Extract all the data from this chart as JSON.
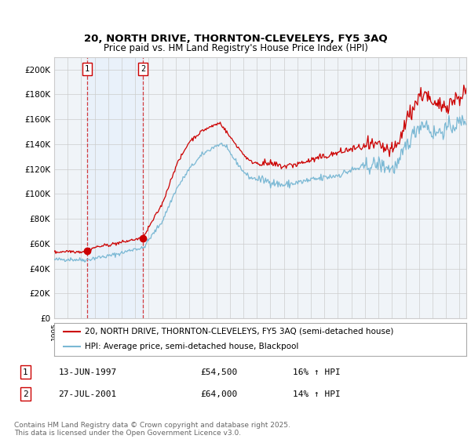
{
  "title1": "20, NORTH DRIVE, THORNTON-CLEVELEYS, FY5 3AQ",
  "title2": "Price paid vs. HM Land Registry's House Price Index (HPI)",
  "ylabel_ticks": [
    "£0",
    "£20K",
    "£40K",
    "£60K",
    "£80K",
    "£100K",
    "£120K",
    "£140K",
    "£160K",
    "£180K",
    "£200K"
  ],
  "ytick_vals": [
    0,
    20000,
    40000,
    60000,
    80000,
    100000,
    120000,
    140000,
    160000,
    180000,
    200000
  ],
  "xlim_start": 1995.0,
  "xlim_end": 2025.5,
  "ylim_min": 0,
  "ylim_max": 210000,
  "sale1_year": 1997.45,
  "sale1_price": 54500,
  "sale1_label": "1",
  "sale1_date": "13-JUN-1997",
  "sale1_hpi": "16% ↑ HPI",
  "sale2_year": 2001.57,
  "sale2_price": 64000,
  "sale2_label": "2",
  "sale2_date": "27-JUL-2001",
  "sale2_hpi": "14% ↑ HPI",
  "legend1": "20, NORTH DRIVE, THORNTON-CLEVELEYS, FY5 3AQ (semi-detached house)",
  "legend2": "HPI: Average price, semi-detached house, Blackpool",
  "footer": "Contains HM Land Registry data © Crown copyright and database right 2025.\nThis data is licensed under the Open Government Licence v3.0.",
  "hpi_color": "#7ab8d4",
  "price_color": "#cc0000",
  "bg_shade_color": "#ddeeff",
  "grid_color": "#cccccc",
  "background_color": "#f0f4f8",
  "hpi_anchors_y": [
    1995,
    1996,
    1997,
    1997.45,
    1998,
    1999,
    2000,
    2001,
    2001.57,
    2002,
    2003,
    2004,
    2005,
    2006,
    2007,
    2007.5,
    2008,
    2009,
    2009.5,
    2010,
    2011,
    2011.5,
    2012,
    2013,
    2014,
    2015,
    2016,
    2017,
    2018,
    2019,
    2020,
    2020.5,
    2021,
    2022,
    2022.5,
    2023,
    2024,
    2025,
    2025.5
  ],
  "hpi_anchors_v": [
    47000,
    47500,
    47000,
    47000,
    48500,
    50000,
    52500,
    56000,
    56000,
    63000,
    78000,
    103000,
    120000,
    132000,
    139000,
    140000,
    133000,
    118000,
    113000,
    112000,
    110000,
    108000,
    107000,
    109000,
    111000,
    113000,
    115000,
    119000,
    122000,
    124000,
    120000,
    124000,
    138000,
    155000,
    157000,
    148000,
    152000,
    157000,
    160000
  ],
  "price_anchors_y": [
    1995,
    1996,
    1997,
    1997.45,
    1998,
    1999,
    2000,
    2001,
    2001.57,
    2002,
    2003,
    2004,
    2005,
    2006,
    2007,
    2007.3,
    2008,
    2009,
    2009.5,
    2010,
    2011,
    2011.5,
    2012,
    2013,
    2014,
    2015,
    2016,
    2017,
    2018,
    2019,
    2020,
    2020.5,
    2021,
    2022,
    2022.5,
    2023,
    2024,
    2025,
    2025.5
  ],
  "price_anchors_v": [
    53000,
    54000,
    53500,
    54500,
    57000,
    59000,
    61000,
    63500,
    64000,
    73000,
    92000,
    122000,
    142000,
    151000,
    156000,
    157000,
    146000,
    132000,
    126000,
    125000,
    124000,
    123000,
    122000,
    124000,
    127000,
    130000,
    133000,
    136000,
    138000,
    138000,
    134000,
    140000,
    158000,
    178000,
    182000,
    170000,
    172000,
    178000,
    183000
  ]
}
